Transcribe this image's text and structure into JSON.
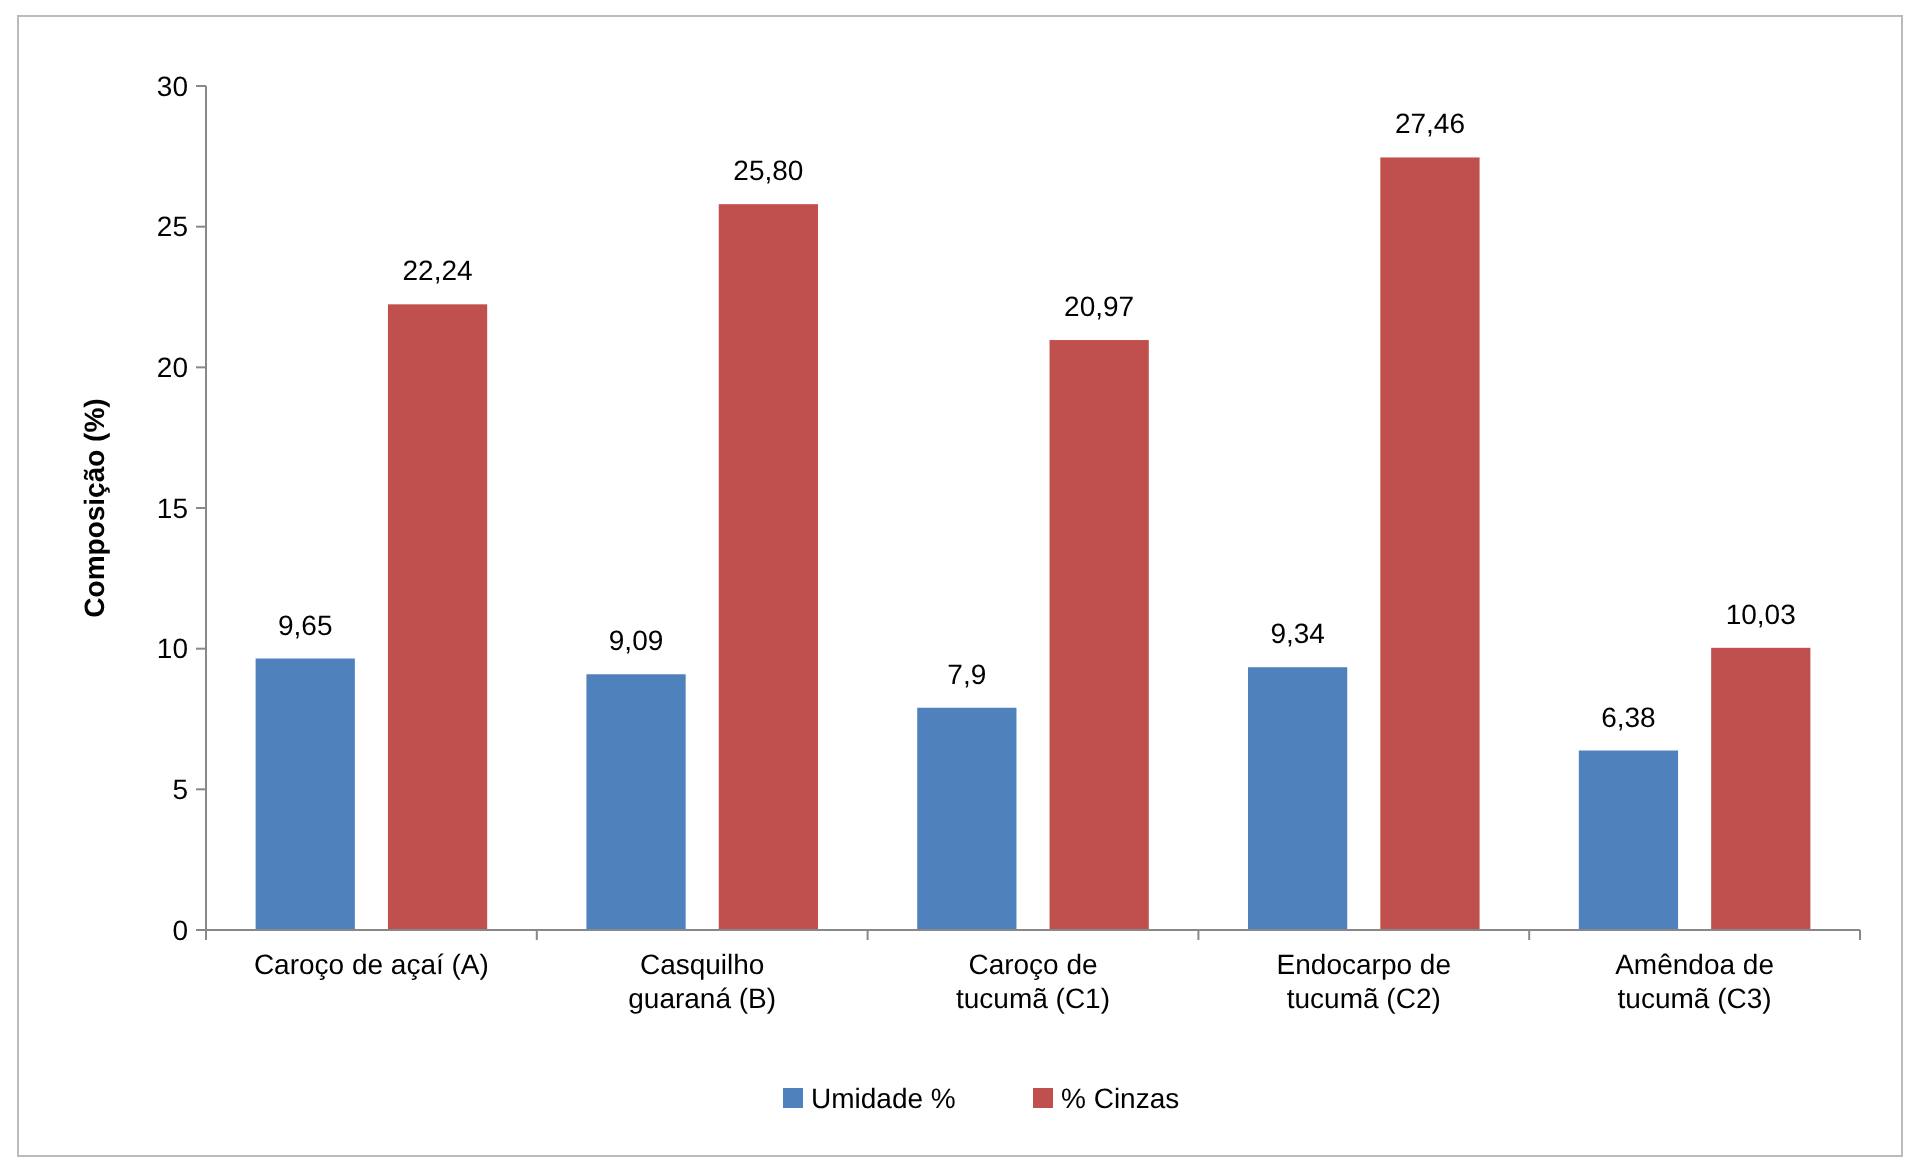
{
  "chart_data": {
    "type": "bar",
    "ylabel": "Composição (%)",
    "categories": [
      "Caroço de açaí (A)",
      "Casquilho guaraná (B)",
      "Caroço de tucumã (C1)",
      "Endocarpo de tucumã (C2)",
      "Amêndoa de tucumã (C3)"
    ],
    "series": [
      {
        "name": "Umidade %",
        "color": "#4f81bd",
        "values": [
          9.65,
          9.09,
          7.9,
          9.34,
          6.38
        ],
        "value_labels": [
          "9,65",
          "9,09",
          "7,9",
          "9,34",
          "6,38"
        ]
      },
      {
        "name": "% Cinzas",
        "color": "#c0504d",
        "values": [
          22.24,
          25.8,
          20.97,
          27.46,
          10.03
        ],
        "value_labels": [
          "22,24",
          "25,80",
          "20,97",
          "27,46",
          "10,03"
        ]
      }
    ],
    "ylim": [
      0,
      30
    ],
    "yticks": [
      0,
      5,
      10,
      15,
      20,
      25,
      30
    ],
    "grid": false,
    "legend": "bottom"
  }
}
